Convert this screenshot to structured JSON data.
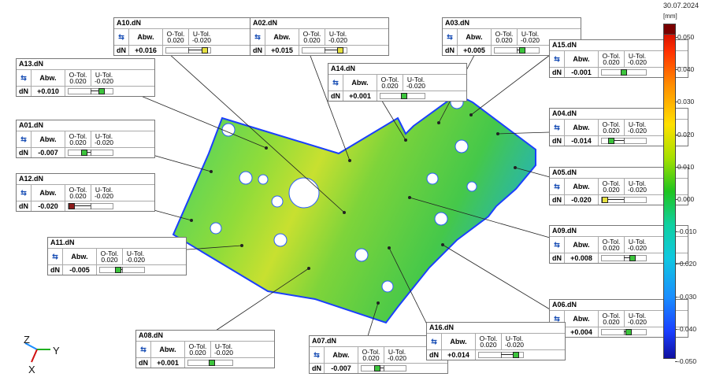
{
  "date": "30.07.2024",
  "scale": {
    "unit": "[mm]",
    "ticks": [
      "0.050",
      "0.040",
      "0.030",
      "0.020",
      "0.010",
      "0.000",
      "-0.010",
      "-0.020",
      "-0.030",
      "-0.040",
      "-0.050"
    ]
  },
  "axes": {
    "z": "Z",
    "y": "Y",
    "x": "X"
  },
  "callouts": [
    {
      "name": "A10.dN",
      "abw_label": "Abw.",
      "o_tol_label": "O-Tol.",
      "o_tol": "0.020",
      "u_tol_label": "U-Tol.",
      "u_tol": "-0.020",
      "dn_label": "dN",
      "value": "+0.016",
      "color": "#e6e040"
    },
    {
      "name": "A02.dN",
      "abw_label": "Abw.",
      "o_tol_label": "O-Tol.",
      "o_tol": "0.020",
      "u_tol_label": "U-Tol.",
      "u_tol": "-0.020",
      "dn_label": "dN",
      "value": "+0.015",
      "color": "#e6e040"
    },
    {
      "name": "A03.dN",
      "abw_label": "Abw.",
      "o_tol_label": "O-Tol.",
      "o_tol": "0.020",
      "u_tol_label": "U-Tol.",
      "u_tol": "-0.020",
      "dn_label": "dN",
      "value": "+0.005",
      "color": "#3cc43c"
    },
    {
      "name": "A15.dN",
      "abw_label": "Abw.",
      "o_tol_label": "O-Tol.",
      "o_tol": "0.020",
      "u_tol_label": "U-Tol.",
      "u_tol": "-0.020",
      "dn_label": "dN",
      "value": "-0.001",
      "color": "#3cc43c"
    },
    {
      "name": "A13.dN",
      "abw_label": "Abw.",
      "o_tol_label": "O-Tol.",
      "o_tol": "0.020",
      "u_tol_label": "U-Tol.",
      "u_tol": "-0.020",
      "dn_label": "dN",
      "value": "+0.010",
      "color": "#3cc43c"
    },
    {
      "name": "A14.dN",
      "abw_label": "Abw.",
      "o_tol_label": "O-Tol.",
      "o_tol": "0.020",
      "u_tol_label": "U-Tol.",
      "u_tol": "-0.020",
      "dn_label": "dN",
      "value": "+0.001",
      "color": "#3cc43c"
    },
    {
      "name": "A04.dN",
      "abw_label": "Abw.",
      "o_tol_label": "O-Tol.",
      "o_tol": "0.020",
      "u_tol_label": "U-Tol.",
      "u_tol": "-0.020",
      "dn_label": "dN",
      "value": "-0.014",
      "color": "#3cc43c"
    },
    {
      "name": "A01.dN",
      "abw_label": "Abw.",
      "o_tol_label": "O-Tol.",
      "o_tol": "0.020",
      "u_tol_label": "U-Tol.",
      "u_tol": "-0.020",
      "dn_label": "dN",
      "value": "-0.007",
      "color": "#3cc43c"
    },
    {
      "name": "A05.dN",
      "abw_label": "Abw.",
      "o_tol_label": "O-Tol.",
      "o_tol": "0.020",
      "u_tol_label": "U-Tol.",
      "u_tol": "-0.020",
      "dn_label": "dN",
      "value": "-0.020",
      "color": "#e6e040"
    },
    {
      "name": "A12.dN",
      "abw_label": "Abw.",
      "o_tol_label": "O-Tol.",
      "o_tol": "0.020",
      "u_tol_label": "U-Tol.",
      "u_tol": "-0.020",
      "dn_label": "dN",
      "value": "-0.020",
      "color": "#8b1a1a"
    },
    {
      "name": "A09.dN",
      "abw_label": "Abw.",
      "o_tol_label": "O-Tol.",
      "o_tol": "0.020",
      "u_tol_label": "U-Tol.",
      "u_tol": "-0.020",
      "dn_label": "dN",
      "value": "+0.008",
      "color": "#3cc43c"
    },
    {
      "name": "A11.dN",
      "abw_label": "Abw.",
      "o_tol_label": "O-Tol.",
      "o_tol": "0.020",
      "u_tol_label": "U-Tol.",
      "u_tol": "-0.020",
      "dn_label": "dN",
      "value": "-0.005",
      "color": "#3cc43c"
    },
    {
      "name": "A06.dN",
      "abw_label": "Abw.",
      "o_tol_label": "O-Tol.",
      "o_tol": "0.020",
      "u_tol_label": "U-Tol.",
      "u_tol": "-0.020",
      "dn_label": "dN",
      "value": "+0.004",
      "color": "#3cc43c"
    },
    {
      "name": "A08.dN",
      "abw_label": "Abw.",
      "o_tol_label": "O-Tol.",
      "o_tol": "0.020",
      "u_tol_label": "U-Tol.",
      "u_tol": "-0.020",
      "dn_label": "dN",
      "value": "+0.001",
      "color": "#3cc43c"
    },
    {
      "name": "A07.dN",
      "abw_label": "Abw.",
      "o_tol_label": "O-Tol.",
      "o_tol": "0.020",
      "u_tol_label": "U-Tol.",
      "u_tol": "-0.020",
      "dn_label": "dN",
      "value": "-0.007",
      "color": "#3cc43c"
    },
    {
      "name": "A16.dN",
      "abw_label": "Abw.",
      "o_tol_label": "O-Tol.",
      "o_tol": "0.020",
      "u_tol_label": "U-Tol.",
      "u_tol": "-0.020",
      "dn_label": "dN",
      "value": "+0.014",
      "color": "#3cc43c"
    }
  ]
}
